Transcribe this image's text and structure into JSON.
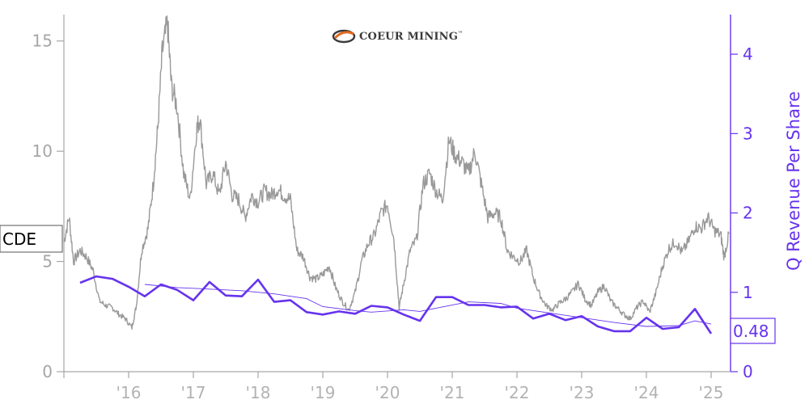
{
  "logo": {
    "text": "COEUR MINING",
    "tm": "™"
  },
  "chart_data": {
    "type": "line",
    "ticker": "CDE",
    "latest_value_label": "0.48",
    "xlabel": "",
    "x_tick_labels": [
      "'16",
      "'17",
      "'18",
      "'19",
      "'20",
      "'21",
      "'22",
      "'23",
      "'24",
      "'25"
    ],
    "left_axis": {
      "ylim": [
        0,
        16.2
      ],
      "ticks": [
        0,
        5,
        10,
        15
      ]
    },
    "right_axis": {
      "label": "Q Revenue Per Share",
      "ylim": [
        0,
        4.5
      ],
      "ticks": [
        0,
        1,
        2,
        3,
        4
      ]
    },
    "colors": {
      "price": "#999999",
      "revenue": "#6633ee",
      "left_axis": "#a6a6a6",
      "right_axis": "#6633ee"
    },
    "series": [
      {
        "key": "price",
        "axis": "left",
        "values": [
          [
            2015.0,
            5.9
          ],
          [
            2015.08,
            7.0
          ],
          [
            2015.15,
            5.0
          ],
          [
            2015.25,
            5.5
          ],
          [
            2015.35,
            5.2
          ],
          [
            2015.45,
            4.6
          ],
          [
            2015.55,
            3.2
          ],
          [
            2015.65,
            3.0
          ],
          [
            2015.75,
            2.9
          ],
          [
            2015.85,
            2.6
          ],
          [
            2015.95,
            2.4
          ],
          [
            2016.05,
            2.0
          ],
          [
            2016.12,
            3.0
          ],
          [
            2016.2,
            5.5
          ],
          [
            2016.3,
            6.5
          ],
          [
            2016.38,
            8.5
          ],
          [
            2016.45,
            11.0
          ],
          [
            2016.52,
            14.5
          ],
          [
            2016.6,
            15.8
          ],
          [
            2016.66,
            13.0
          ],
          [
            2016.75,
            12.0
          ],
          [
            2016.85,
            9.0
          ],
          [
            2016.95,
            7.8
          ],
          [
            2017.05,
            11.0
          ],
          [
            2017.1,
            11.5
          ],
          [
            2017.2,
            8.5
          ],
          [
            2017.3,
            9.0
          ],
          [
            2017.4,
            8.0
          ],
          [
            2017.5,
            9.5
          ],
          [
            2017.6,
            8.0
          ],
          [
            2017.7,
            7.8
          ],
          [
            2017.8,
            7.0
          ],
          [
            2017.9,
            8.0
          ],
          [
            2018.0,
            7.7
          ],
          [
            2018.1,
            8.2
          ],
          [
            2018.2,
            8.0
          ],
          [
            2018.3,
            8.3
          ],
          [
            2018.4,
            8.0
          ],
          [
            2018.5,
            7.8
          ],
          [
            2018.6,
            5.5
          ],
          [
            2018.7,
            5.2
          ],
          [
            2018.8,
            4.3
          ],
          [
            2018.9,
            4.2
          ],
          [
            2019.0,
            4.4
          ],
          [
            2019.1,
            4.8
          ],
          [
            2019.2,
            3.8
          ],
          [
            2019.3,
            3.2
          ],
          [
            2019.4,
            2.8
          ],
          [
            2019.5,
            3.6
          ],
          [
            2019.6,
            5.0
          ],
          [
            2019.7,
            5.8
          ],
          [
            2019.8,
            6.2
          ],
          [
            2019.9,
            7.2
          ],
          [
            2020.0,
            7.6
          ],
          [
            2020.1,
            6.0
          ],
          [
            2020.18,
            2.9
          ],
          [
            2020.25,
            4.0
          ],
          [
            2020.35,
            5.5
          ],
          [
            2020.45,
            6.0
          ],
          [
            2020.55,
            8.5
          ],
          [
            2020.65,
            9.0
          ],
          [
            2020.75,
            8.2
          ],
          [
            2020.85,
            7.8
          ],
          [
            2020.95,
            10.5
          ],
          [
            2021.05,
            9.8
          ],
          [
            2021.15,
            9.5
          ],
          [
            2021.25,
            9.0
          ],
          [
            2021.35,
            10.0
          ],
          [
            2021.45,
            8.5
          ],
          [
            2021.55,
            7.0
          ],
          [
            2021.65,
            7.2
          ],
          [
            2021.75,
            7.0
          ],
          [
            2021.85,
            5.5
          ],
          [
            2021.95,
            5.2
          ],
          [
            2022.05,
            5.0
          ],
          [
            2022.15,
            5.5
          ],
          [
            2022.25,
            4.3
          ],
          [
            2022.35,
            3.5
          ],
          [
            2022.45,
            3.0
          ],
          [
            2022.55,
            2.8
          ],
          [
            2022.65,
            3.1
          ],
          [
            2022.75,
            3.3
          ],
          [
            2022.85,
            3.6
          ],
          [
            2022.95,
            4.0
          ],
          [
            2023.05,
            3.3
          ],
          [
            2023.15,
            3.0
          ],
          [
            2023.25,
            3.6
          ],
          [
            2023.35,
            3.9
          ],
          [
            2023.45,
            3.2
          ],
          [
            2023.55,
            2.9
          ],
          [
            2023.65,
            2.6
          ],
          [
            2023.75,
            2.4
          ],
          [
            2023.85,
            2.9
          ],
          [
            2023.95,
            3.2
          ],
          [
            2024.05,
            2.7
          ],
          [
            2024.15,
            3.6
          ],
          [
            2024.25,
            4.8
          ],
          [
            2024.35,
            5.6
          ],
          [
            2024.45,
            5.9
          ],
          [
            2024.55,
            5.4
          ],
          [
            2024.65,
            5.9
          ],
          [
            2024.75,
            6.6
          ],
          [
            2024.85,
            6.5
          ],
          [
            2024.95,
            7.0
          ],
          [
            2025.05,
            6.4
          ],
          [
            2025.15,
            6.2
          ],
          [
            2025.2,
            5.2
          ],
          [
            2025.28,
            6.3
          ]
        ]
      },
      {
        "key": "revenue",
        "axis": "right",
        "values": [
          [
            2015.25,
            1.12
          ],
          [
            2015.5,
            1.2
          ],
          [
            2015.75,
            1.17
          ],
          [
            2016.0,
            1.07
          ],
          [
            2016.25,
            0.95
          ],
          [
            2016.5,
            1.1
          ],
          [
            2016.75,
            1.03
          ],
          [
            2017.0,
            0.9
          ],
          [
            2017.25,
            1.13
          ],
          [
            2017.5,
            0.96
          ],
          [
            2017.75,
            0.95
          ],
          [
            2018.0,
            1.16
          ],
          [
            2018.25,
            0.88
          ],
          [
            2018.5,
            0.9
          ],
          [
            2018.75,
            0.75
          ],
          [
            2019.0,
            0.72
          ],
          [
            2019.25,
            0.76
          ],
          [
            2019.5,
            0.73
          ],
          [
            2019.75,
            0.83
          ],
          [
            2020.0,
            0.81
          ],
          [
            2020.25,
            0.72
          ],
          [
            2020.5,
            0.64
          ],
          [
            2020.75,
            0.94
          ],
          [
            2021.0,
            0.94
          ],
          [
            2021.25,
            0.84
          ],
          [
            2021.5,
            0.84
          ],
          [
            2021.75,
            0.81
          ],
          [
            2022.0,
            0.82
          ],
          [
            2022.25,
            0.67
          ],
          [
            2022.5,
            0.73
          ],
          [
            2022.75,
            0.65
          ],
          [
            2023.0,
            0.7
          ],
          [
            2023.25,
            0.57
          ],
          [
            2023.5,
            0.51
          ],
          [
            2023.75,
            0.51
          ],
          [
            2024.0,
            0.68
          ],
          [
            2024.25,
            0.54
          ],
          [
            2024.5,
            0.56
          ],
          [
            2024.75,
            0.79
          ],
          [
            2025.0,
            0.48
          ]
        ]
      },
      {
        "key": "revenue_trend",
        "axis": "right",
        "values": [
          [
            2016.25,
            1.1
          ],
          [
            2016.75,
            1.06
          ],
          [
            2017.25,
            1.04
          ],
          [
            2017.75,
            1.02
          ],
          [
            2018.25,
            0.98
          ],
          [
            2018.75,
            0.92
          ],
          [
            2019.0,
            0.82
          ],
          [
            2019.5,
            0.77
          ],
          [
            2019.75,
            0.75
          ],
          [
            2020.25,
            0.78
          ],
          [
            2020.5,
            0.76
          ],
          [
            2020.75,
            0.8
          ],
          [
            2021.25,
            0.88
          ],
          [
            2021.75,
            0.86
          ],
          [
            2022.0,
            0.8
          ],
          [
            2022.5,
            0.74
          ],
          [
            2023.0,
            0.68
          ],
          [
            2023.5,
            0.62
          ],
          [
            2024.0,
            0.57
          ],
          [
            2024.5,
            0.58
          ],
          [
            2024.75,
            0.64
          ],
          [
            2025.0,
            0.6
          ]
        ]
      }
    ]
  }
}
